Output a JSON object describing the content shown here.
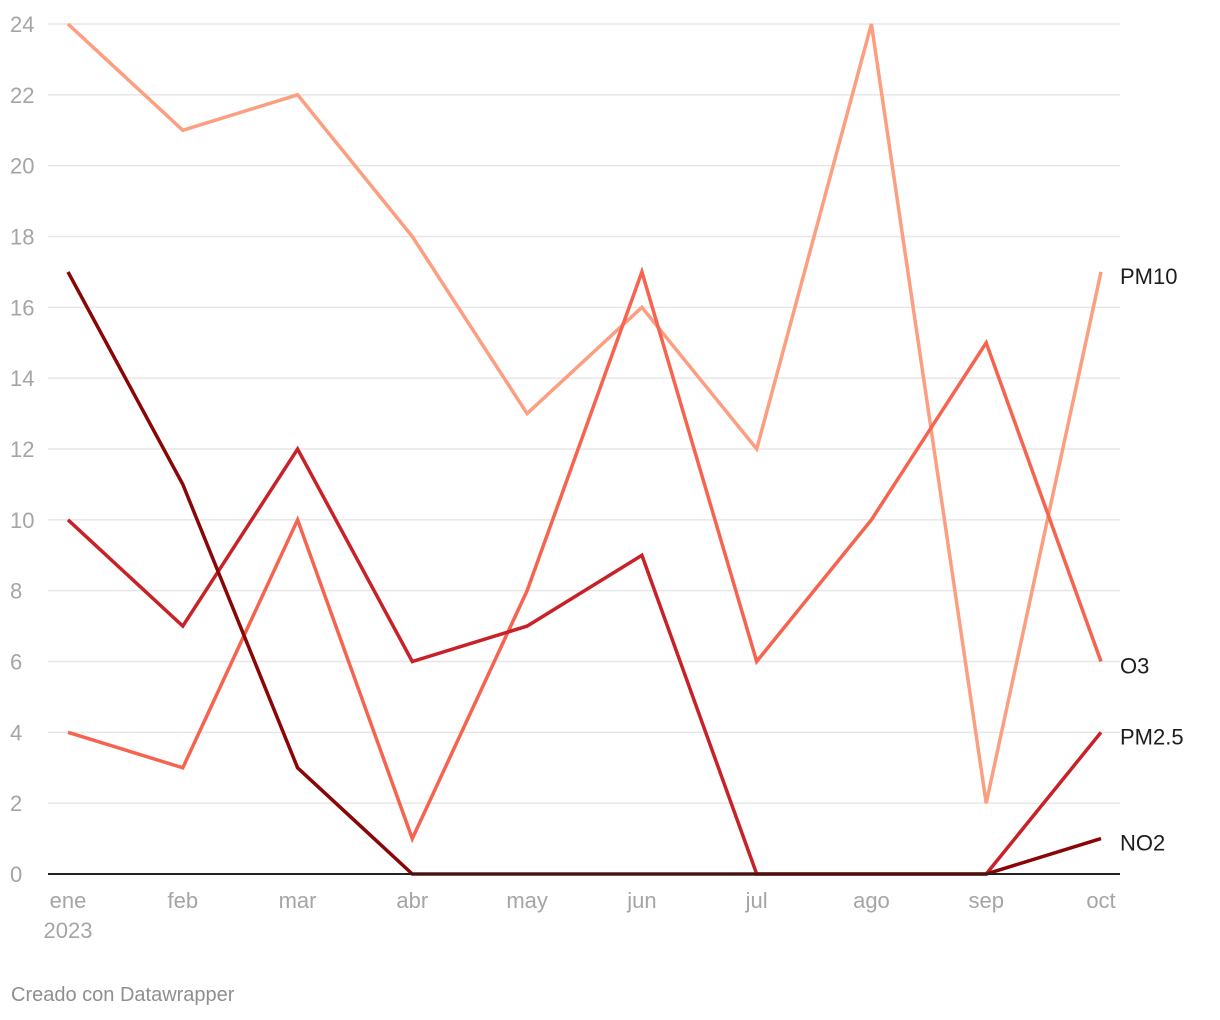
{
  "chart_data": {
    "type": "line",
    "categories": [
      "ene",
      "feb",
      "mar",
      "abr",
      "may",
      "jun",
      "jul",
      "ago",
      "sep",
      "oct"
    ],
    "first_category_sublabel": "2023",
    "y_ticks": [
      "0",
      "2",
      "4",
      "6",
      "8",
      "10",
      "12",
      "14",
      "16",
      "18",
      "20",
      "22",
      "24"
    ],
    "ylim": [
      0,
      24
    ],
    "grid": true,
    "legend": "direct labels at line ends (right)",
    "series": [
      {
        "name": "PM10",
        "color": "#fc9e80",
        "values": [
          24,
          21,
          22,
          18,
          13,
          16,
          12,
          24,
          2,
          17
        ]
      },
      {
        "name": "O3",
        "color": "#f66450",
        "values": [
          4,
          3,
          10,
          1,
          8,
          17,
          6,
          10,
          15,
          6
        ]
      },
      {
        "name": "PM2.5",
        "color": "#c82228",
        "values": [
          10,
          7,
          12,
          6,
          7,
          9,
          0,
          0,
          0,
          4
        ]
      },
      {
        "name": "NO2",
        "color": "#8a0606",
        "values": [
          17,
          11,
          3,
          0,
          0,
          0,
          0,
          0,
          0,
          1
        ]
      }
    ]
  },
  "footer": {
    "credit": "Creado con Datawrapper"
  }
}
